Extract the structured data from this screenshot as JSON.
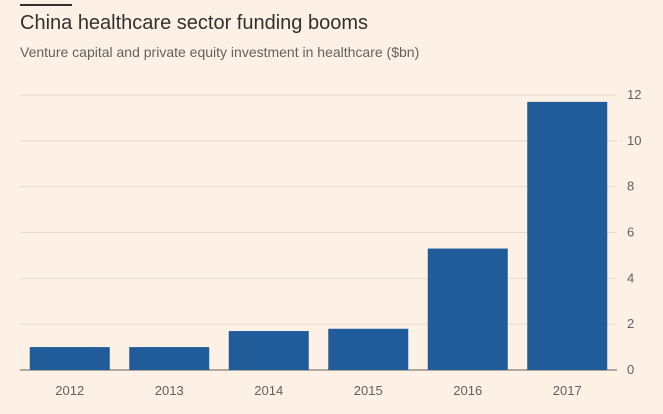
{
  "chart_data": {
    "type": "bar",
    "title": "China healthcare sector funding booms",
    "subtitle": "Venture capital and private equity investment in healthcare ($bn)",
    "categories": [
      "2012",
      "2013",
      "2014",
      "2015",
      "2016",
      "2017"
    ],
    "values": [
      1.0,
      1.0,
      1.7,
      1.8,
      5.3,
      11.7
    ],
    "xlabel": "",
    "ylabel": "",
    "ylim": [
      0,
      12
    ],
    "yticks": [
      0,
      2,
      4,
      6,
      8,
      10,
      12
    ],
    "y_axis_side": "right",
    "grid": true,
    "legend": "none",
    "bar_color": "#1f5c99",
    "colors": {
      "background": "#fdf1e6",
      "gridline": "#e6d9ce",
      "text": "#66605c",
      "title": "#33302e"
    }
  }
}
